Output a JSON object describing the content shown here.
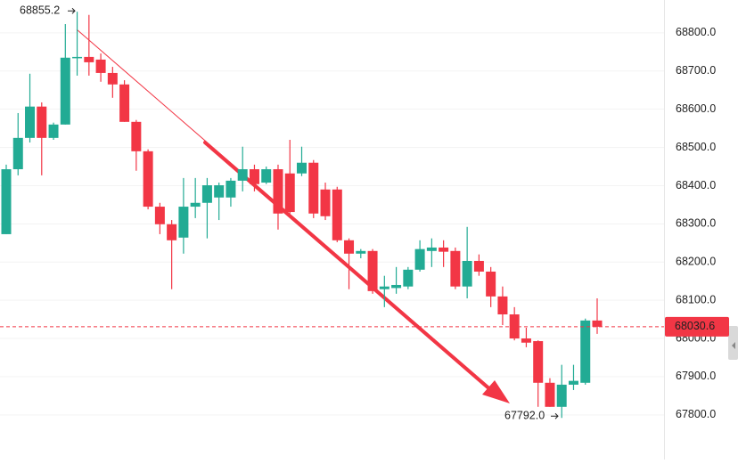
{
  "chart_data": {
    "type": "candlestick",
    "up_color": "#22ab94",
    "down_color": "#f23645",
    "ylim": [
      67683,
      68886
    ],
    "yticks": [
      {
        "value": 67800,
        "label": "67800.0"
      },
      {
        "value": 67900,
        "label": "67900.0"
      },
      {
        "value": 68000,
        "label": "68000.0"
      },
      {
        "value": 68100,
        "label": "68100.0"
      },
      {
        "value": 68200,
        "label": "68200.0"
      },
      {
        "value": 68300,
        "label": "68300.0"
      },
      {
        "value": 68400,
        "label": "68400.0"
      },
      {
        "value": 68500,
        "label": "68500.0"
      },
      {
        "value": 68600,
        "label": "68600.0"
      },
      {
        "value": 68700,
        "label": "68700.0"
      },
      {
        "value": 68800,
        "label": "68800.0"
      }
    ],
    "open": [
      68273,
      68443,
      68525,
      68607,
      68525,
      68560,
      68735,
      68737,
      68730,
      68695,
      68665,
      68567,
      68490,
      68345,
      68299,
      68264,
      68345,
      68355,
      68369,
      68369,
      68413,
      68443,
      68408,
      68443,
      68432,
      68432,
      68460,
      68390,
      68390,
      68257,
      68222,
      68229,
      68129,
      68132,
      68136,
      68180,
      68229,
      68238,
      68229,
      68136,
      68203,
      68175,
      68110,
      68063,
      68000,
      67993,
      67884,
      67821,
      67879,
      67884,
      68047
    ],
    "high": [
      68455,
      68590,
      68693,
      68618,
      68565,
      68823,
      68855.2,
      68847,
      68746,
      68711,
      68676,
      68572,
      68495,
      68355,
      68310,
      68420,
      68420,
      68420,
      68408,
      68420,
      68502,
      68455,
      68450,
      68455,
      68520,
      68502,
      68467,
      68408,
      68397,
      68262,
      68234,
      68234,
      68164,
      68187,
      68187,
      68257,
      68262,
      68257,
      68238,
      68292,
      68220,
      68187,
      68136,
      68082,
      68028,
      67995,
      67896,
      67931,
      67931,
      68052,
      68105
    ],
    "low": [
      68273,
      68427,
      68513,
      68427,
      68520,
      68560,
      68688,
      68688,
      68672,
      68630,
      68567,
      68439,
      68338,
      68273,
      68129,
      68222,
      68315,
      68262,
      68310,
      68345,
      68385,
      68385,
      68404,
      68285,
      68327,
      68425,
      68315,
      68310,
      68252,
      68129,
      68210,
      68117,
      68082,
      68117,
      68129,
      68175,
      68187,
      68187,
      68129,
      68105,
      68164,
      68082,
      68035,
      67995,
      67977,
      67821,
      67821,
      67792,
      67865,
      67879,
      68012
    ],
    "close": [
      68443,
      68525,
      68607,
      68525,
      68560,
      68735,
      68737,
      68723,
      68695,
      68665,
      68567,
      68490,
      68345,
      68299,
      68257,
      68345,
      68355,
      68401,
      68401,
      68413,
      68443,
      68404,
      68443,
      68327,
      68331,
      68460,
      68327,
      68320,
      68257,
      68222,
      68229,
      68124,
      68136,
      68140,
      68180,
      68234,
      68238,
      68227,
      68136,
      68203,
      68175,
      68110,
      68063,
      68000,
      67989,
      67884,
      67821,
      67879,
      67889,
      68047,
      68030.6
    ],
    "max_label": {
      "value": 68855.2,
      "label": "68855.2"
    },
    "min_label": {
      "value": 67792.0,
      "label": "67792.0"
    },
    "last_price": {
      "value": 68030.6,
      "label": "68030.6"
    }
  }
}
